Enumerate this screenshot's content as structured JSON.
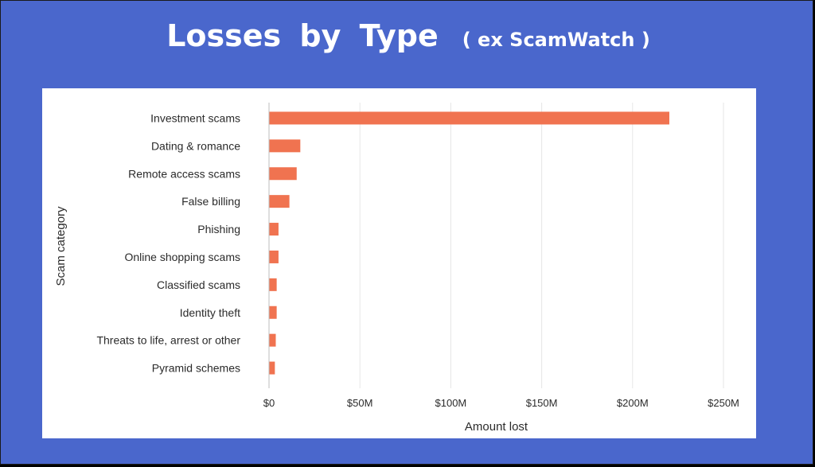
{
  "slide": {
    "title": "Losses  by  Type",
    "subtitle": "( ex ScamWatch )"
  },
  "chart_data": {
    "type": "bar",
    "orientation": "horizontal",
    "categories": [
      "Investment scams",
      "Dating & romance",
      "Remote access scams",
      "False billing",
      "Phishing",
      "Online shopping scams",
      "Classified scams",
      "Identity theft",
      "Threats to life, arrest or other",
      "Pyramid schemes"
    ],
    "values": [
      220,
      17,
      15,
      11,
      5,
      5,
      4,
      4,
      3.5,
      3
    ],
    "value_unit": "$M",
    "xlabel": "Amount lost",
    "ylabel": "Scam category",
    "xlim": [
      0,
      250
    ],
    "xticks": [
      0,
      50,
      100,
      150,
      200,
      250
    ],
    "xtick_labels": [
      "$0",
      "$50M",
      "$100M",
      "$150M",
      "$200M",
      "$250M"
    ],
    "grid": "vertical",
    "bar_color": "#f07350"
  }
}
